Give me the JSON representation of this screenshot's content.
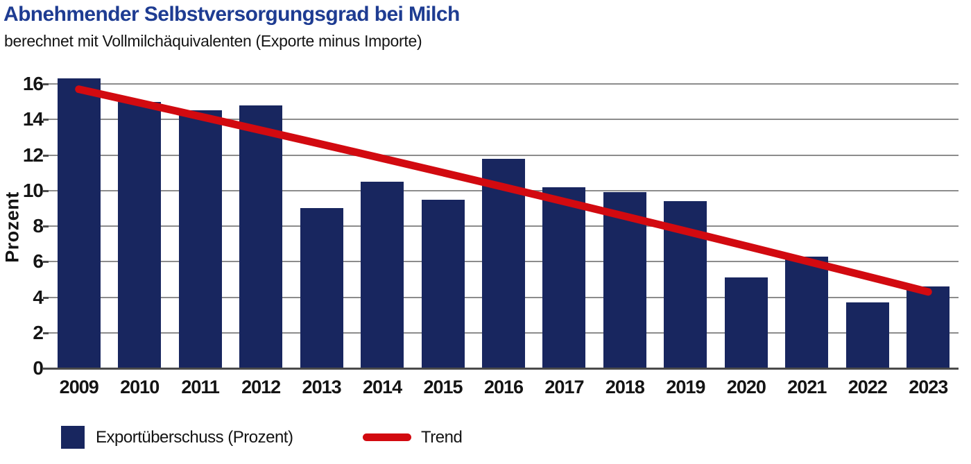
{
  "title": {
    "text": "Abnehmender Selbstversorgungsgrad bei Milch",
    "color": "#1e3c92"
  },
  "subtitle": {
    "text": "berechnet mit Vollmilchäquivalenten (Exporte minus Importe)"
  },
  "chart_data": {
    "type": "bar",
    "title": "Abnehmender Selbstversorgungsgrad bei Milch",
    "subtitle": "berechnet mit Vollmilchäquivalenten (Exporte minus Importe)",
    "categories": [
      "2009",
      "2010",
      "2011",
      "2012",
      "2013",
      "2014",
      "2015",
      "2016",
      "2017",
      "2018",
      "2019",
      "2020",
      "2021",
      "2022",
      "2023"
    ],
    "series": [
      {
        "name": "Exportüberschuss (Prozent)",
        "type": "bar",
        "color": "#18265f",
        "values": [
          16.3,
          15.0,
          14.5,
          14.8,
          9.0,
          10.5,
          9.5,
          11.8,
          10.2,
          9.9,
          9.4,
          5.1,
          6.3,
          3.7,
          4.6
        ]
      },
      {
        "name": "Trend",
        "type": "line",
        "color": "#d20a10",
        "points": [
          {
            "category": "2009",
            "value": 15.7
          },
          {
            "category": "2016",
            "value": 10.2
          },
          {
            "category": "2023",
            "value": 4.3
          }
        ]
      }
    ],
    "xlabel": "",
    "ylabel": "Prozent",
    "ylim": [
      0,
      16
    ],
    "yticks": [
      0,
      2,
      4,
      6,
      8,
      10,
      12,
      14,
      16
    ],
    "grid": true,
    "legend_position": "bottom"
  },
  "legend": {
    "items": [
      {
        "label": "Exportüberschuss (Prozent)",
        "swatch": "square",
        "color": "#18265f"
      },
      {
        "label": "Trend",
        "swatch": "line",
        "color": "#d20a10"
      }
    ]
  },
  "colors": {
    "title": "#1e3c92",
    "text": "#141414",
    "bar": "#18265f",
    "trend": "#d20a10",
    "gridline": "#8c8c8c",
    "axis": "#4a4a4a",
    "background": "#ffffff"
  }
}
